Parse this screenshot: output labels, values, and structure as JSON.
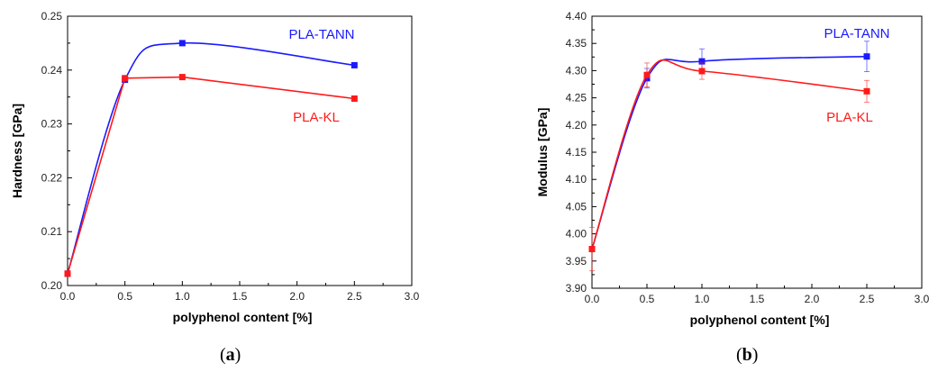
{
  "chart_data": [
    {
      "type": "line",
      "caption_open": "(",
      "caption_letter": "a",
      "caption_close": ")",
      "xlabel": "polyphenol content [%]",
      "ylabel": "Hardness [GPa]",
      "xlim": [
        0.0,
        3.0
      ],
      "ylim": [
        0.2,
        0.25
      ],
      "xticks": [
        "0.0",
        "0.5",
        "1.0",
        "1.5",
        "2.0",
        "2.5",
        "3.0"
      ],
      "yticks": [
        "0.20",
        "0.21",
        "0.22",
        "0.23",
        "0.24",
        "0.25"
      ],
      "grid": false,
      "series": [
        {
          "name": "PLA-TANN",
          "color": "#1a1aff",
          "smooth": true,
          "x": [
            0.0,
            0.5,
            1.0,
            2.5
          ],
          "y": [
            0.2022,
            0.2382,
            0.245,
            0.2409
          ],
          "err": [
            0,
            0,
            0,
            0
          ]
        },
        {
          "name": "PLA-KL",
          "color": "#ff1a1a",
          "smooth": false,
          "x": [
            0.0,
            0.5,
            1.0,
            2.5
          ],
          "y": [
            0.2022,
            0.2385,
            0.2387,
            0.2347
          ],
          "err": [
            0,
            0,
            0,
            0
          ]
        }
      ]
    },
    {
      "type": "line",
      "caption_open": "(",
      "caption_letter": "b",
      "caption_close": ")",
      "xlabel": "polyphenol content [%]",
      "ylabel": "Modulus [GPa]",
      "xlim": [
        0.0,
        3.0
      ],
      "ylim": [
        3.9,
        4.4
      ],
      "xticks": [
        "0.0",
        "0.5",
        "1.0",
        "1.5",
        "2.0",
        "2.5",
        "3.0"
      ],
      "yticks": [
        "3.90",
        "3.95",
        "4.00",
        "4.05",
        "4.10",
        "4.15",
        "4.20",
        "4.25",
        "4.30",
        "4.35",
        "4.40"
      ],
      "grid": false,
      "series": [
        {
          "name": "PLA-TANN",
          "color": "#1a1aff",
          "smooth": true,
          "x": [
            0.0,
            0.5,
            1.0,
            2.5
          ],
          "y": [
            3.972,
            4.286,
            4.317,
            4.326
          ],
          "err": [
            0,
            0.018,
            0.023,
            0.028
          ]
        },
        {
          "name": "PLA-KL",
          "color": "#ff1a1a",
          "smooth": true,
          "x": [
            0.0,
            0.5,
            1.0,
            2.5
          ],
          "y": [
            3.972,
            4.292,
            4.299,
            4.262
          ],
          "err": [
            0.04,
            0.022,
            0.015,
            0.02
          ]
        }
      ]
    }
  ]
}
